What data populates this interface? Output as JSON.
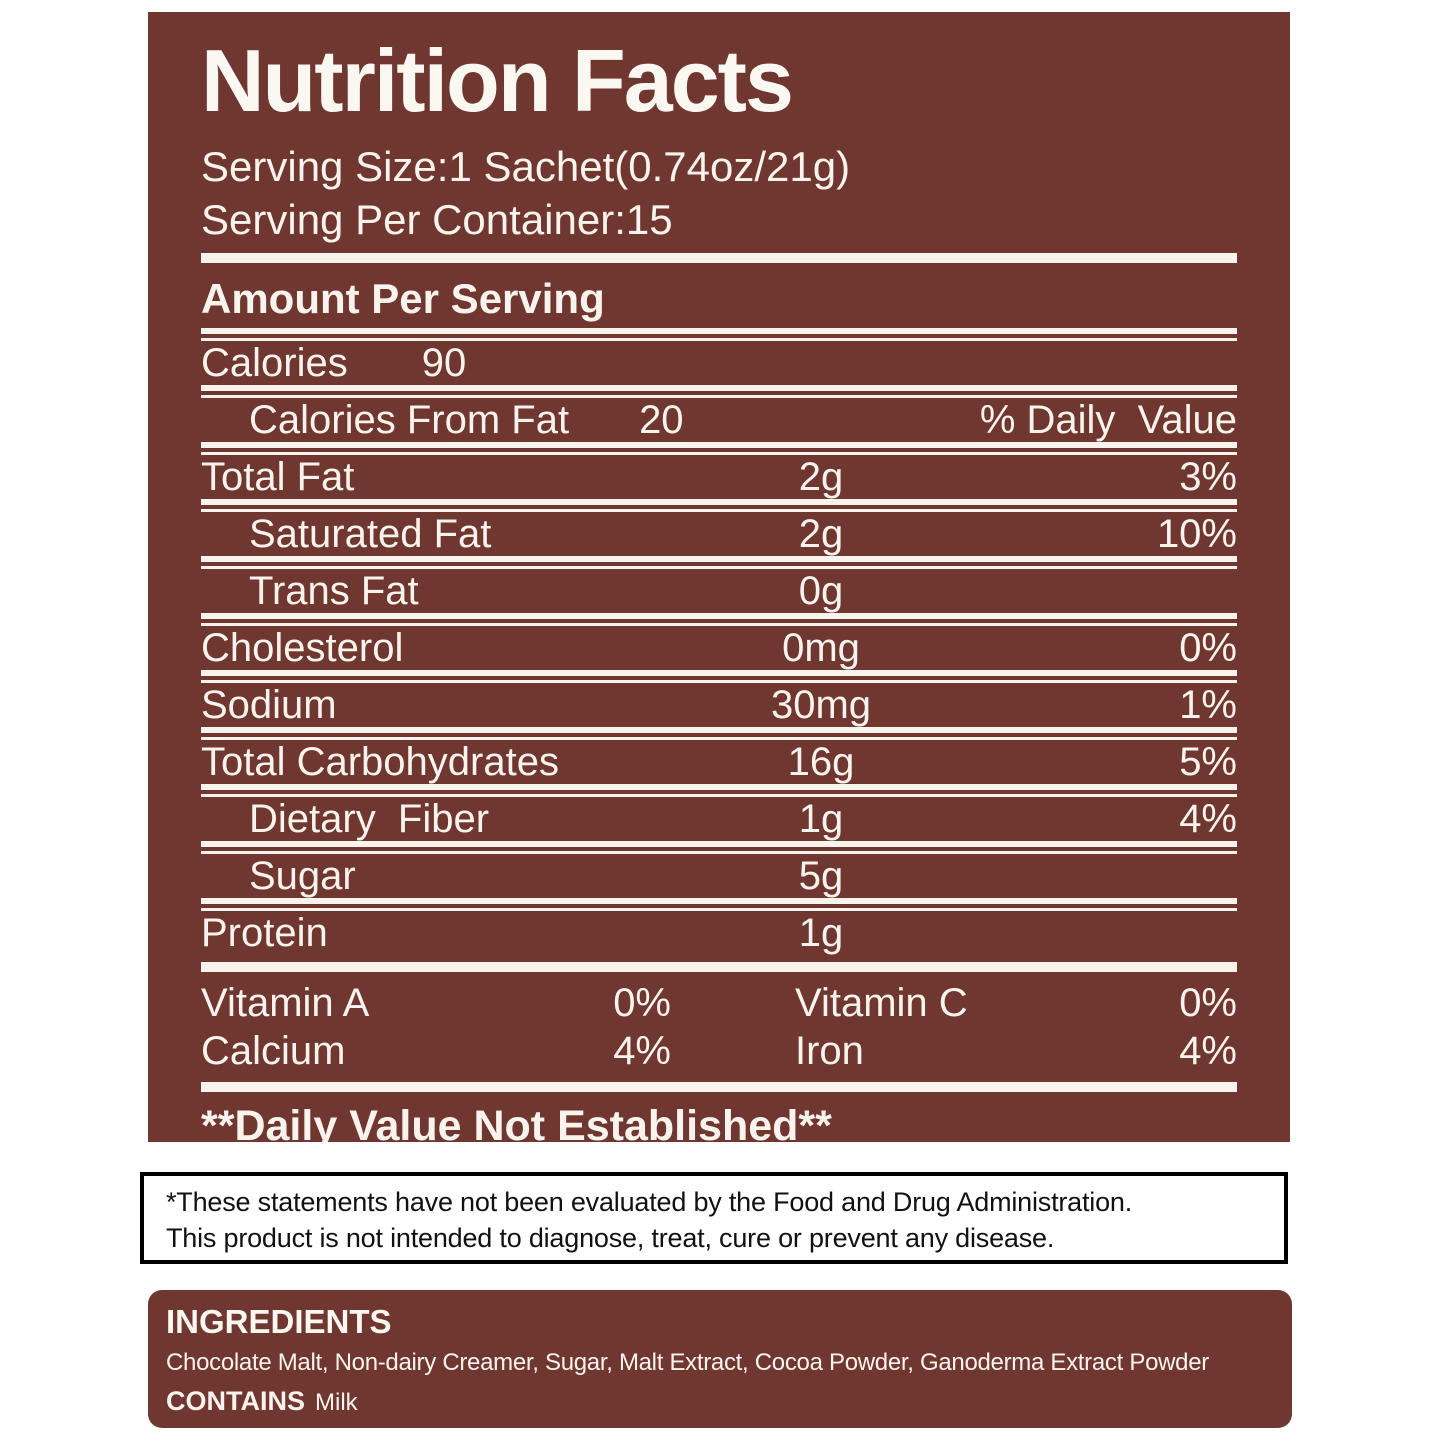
{
  "nutrition": {
    "title": "Nutrition Facts",
    "serving_size": "Serving Size:1 Sachet(0.74oz/21g)",
    "serving_per_container": "Serving Per Container:15",
    "amount_per_serving": "Amount Per Serving",
    "calories": {
      "label": "Calories",
      "value": "90"
    },
    "calories_from_fat": {
      "label": "Calories From Fat",
      "value": "20"
    },
    "daily_value_header": "% Daily  Value",
    "rows": [
      {
        "label": "Total Fat",
        "amount": "2g",
        "dv": "3%"
      },
      {
        "label": "Saturated Fat",
        "amount": "2g",
        "dv": "10%"
      },
      {
        "label": "Trans Fat",
        "amount": "0g",
        "dv": ""
      },
      {
        "label": "Cholesterol",
        "amount": "0mg",
        "dv": "0%"
      },
      {
        "label": "Sodium",
        "amount": "30mg",
        "dv": "1%"
      },
      {
        "label": "Total Carbohydrates",
        "amount": "16g",
        "dv": "5%"
      },
      {
        "label": "Dietary  Fiber",
        "amount": "1g",
        "dv": "4%"
      },
      {
        "label": "Sugar",
        "amount": "5g",
        "dv": ""
      },
      {
        "label": "Protein",
        "amount": "1g",
        "dv": ""
      }
    ],
    "vitamins": [
      {
        "label": "Vitamin A",
        "pct": "0%"
      },
      {
        "label": "Vitamin C",
        "pct": "0%"
      },
      {
        "label": "Calcium",
        "pct": "4%"
      },
      {
        "label": "Iron",
        "pct": "4%"
      }
    ],
    "footnote": "**Daily Value Not Established**"
  },
  "disclaimer": {
    "line1": "*These statements have not been evaluated by the Food and Drug Administration.",
    "line2": "This product is not intended to diagnose, treat, cure or prevent any disease."
  },
  "ingredients": {
    "heading": "INGREDIENTS",
    "list": "Chocolate Malt, Non-dairy Creamer, Sugar, Malt Extract, Cocoa Powder, Ganoderma Extract Powder",
    "contains_label": "CONTAINS",
    "contains_value": "Milk"
  },
  "colors": {
    "panel_brown": "#703630",
    "rule_white": "#F9F3ED",
    "disclaimer_border": "#000000",
    "disclaimer_text": "#111111"
  }
}
